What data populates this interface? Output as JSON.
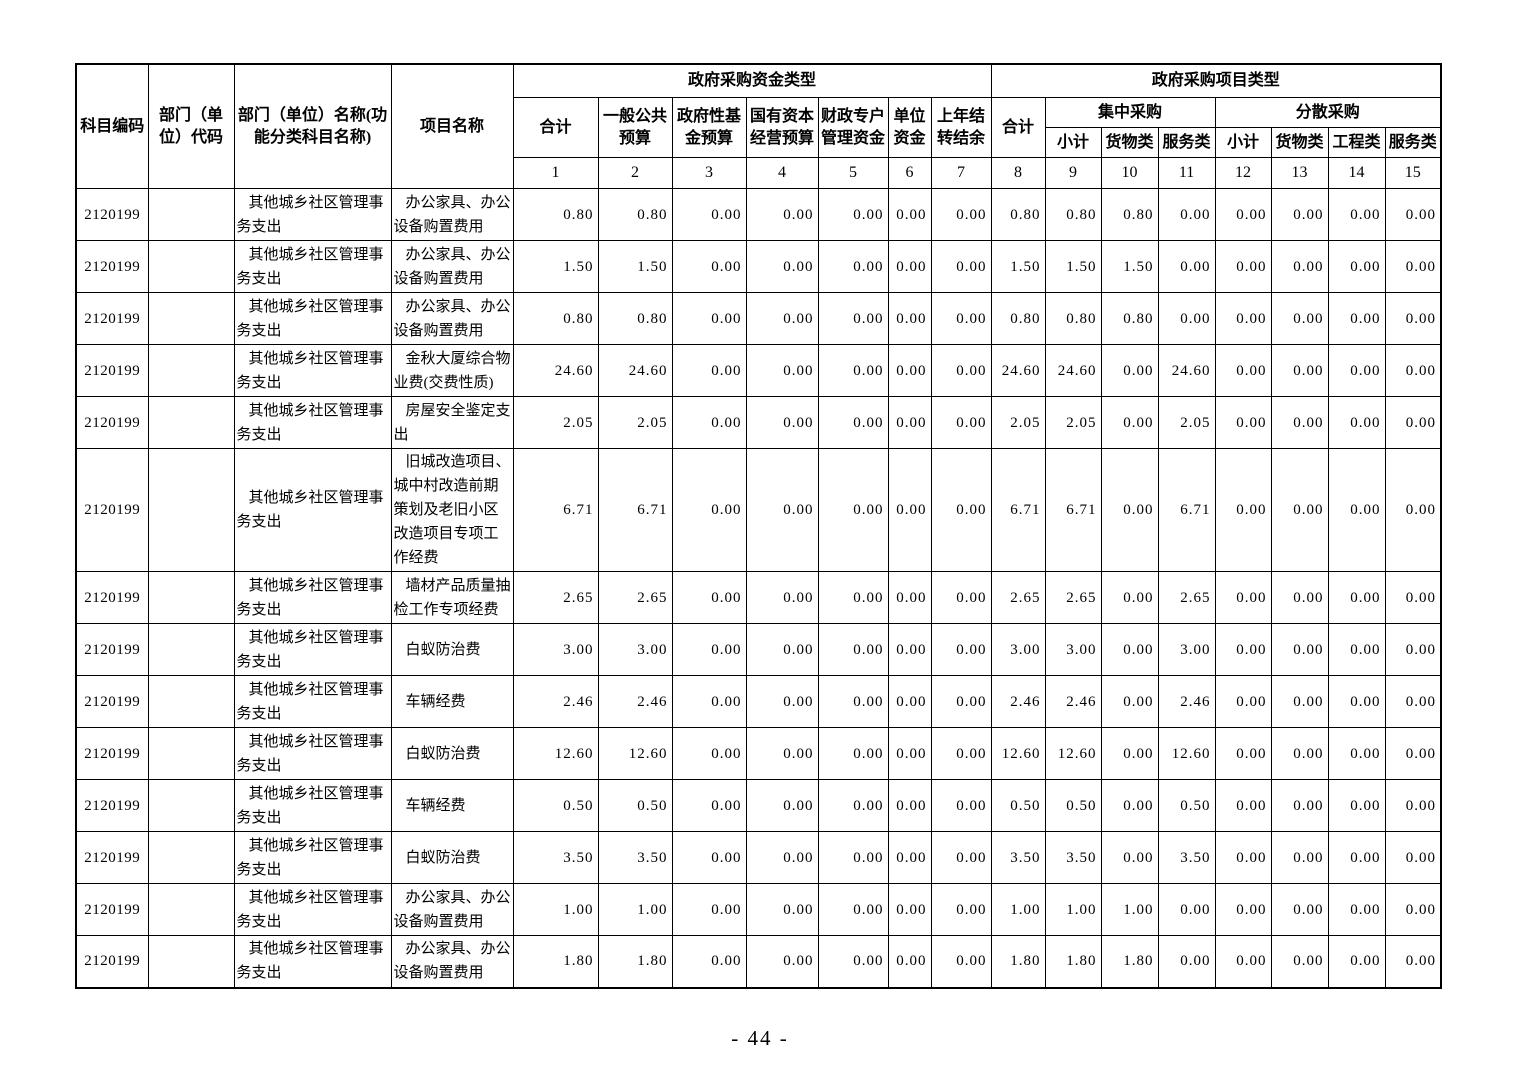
{
  "page": {
    "footer": "- 44 -"
  },
  "table": {
    "headers": {
      "subject_code": "科目编码",
      "dept_code": "部门（单位）代码",
      "dept_name": "部门（单位）名称(功能分类科目名称)",
      "project_name": "项目名称",
      "fund_type_group": "政府采购资金类型",
      "project_type_group": "政府采购项目类型",
      "fund_cols": [
        "合计",
        "一般公共预算",
        "政府性基金预算",
        "国有资本经营预算",
        "财政专户管理资金",
        "单位资金",
        "上年结转结余"
      ],
      "project_total": "合计",
      "centralized_group": "集中采购",
      "decentralized_group": "分散采购",
      "centralized_cols": [
        "小计",
        "货物类",
        "服务类"
      ],
      "decentralized_cols": [
        "小计",
        "货物类",
        "工程类",
        "服务类"
      ],
      "col_numbers": [
        "1",
        "2",
        "3",
        "4",
        "5",
        "6",
        "7",
        "8",
        "9",
        "10",
        "11",
        "12",
        "13",
        "14",
        "15"
      ]
    },
    "rows": [
      {
        "code": "2120199",
        "dept_code": "",
        "name": "其他城乡社区管理事务支出",
        "project": "办公家具、办公设备购置费用",
        "values": [
          "0.80",
          "0.80",
          "0.00",
          "0.00",
          "0.00",
          "0.00",
          "0.00",
          "0.80",
          "0.80",
          "0.80",
          "0.00",
          "0.00",
          "0.00",
          "0.00",
          "0.00"
        ]
      },
      {
        "code": "2120199",
        "dept_code": "",
        "name": "其他城乡社区管理事务支出",
        "project": "办公家具、办公设备购置费用",
        "values": [
          "1.50",
          "1.50",
          "0.00",
          "0.00",
          "0.00",
          "0.00",
          "0.00",
          "1.50",
          "1.50",
          "1.50",
          "0.00",
          "0.00",
          "0.00",
          "0.00",
          "0.00"
        ]
      },
      {
        "code": "2120199",
        "dept_code": "",
        "name": "其他城乡社区管理事务支出",
        "project": "办公家具、办公设备购置费用",
        "values": [
          "0.80",
          "0.80",
          "0.00",
          "0.00",
          "0.00",
          "0.00",
          "0.00",
          "0.80",
          "0.80",
          "0.80",
          "0.00",
          "0.00",
          "0.00",
          "0.00",
          "0.00"
        ]
      },
      {
        "code": "2120199",
        "dept_code": "",
        "name": "其他城乡社区管理事务支出",
        "project": "金秋大厦综合物业费(交费性质)",
        "values": [
          "24.60",
          "24.60",
          "0.00",
          "0.00",
          "0.00",
          "0.00",
          "0.00",
          "24.60",
          "24.60",
          "0.00",
          "24.60",
          "0.00",
          "0.00",
          "0.00",
          "0.00"
        ]
      },
      {
        "code": "2120199",
        "dept_code": "",
        "name": "其他城乡社区管理事务支出",
        "project": "房屋安全鉴定支出",
        "values": [
          "2.05",
          "2.05",
          "0.00",
          "0.00",
          "0.00",
          "0.00",
          "0.00",
          "2.05",
          "2.05",
          "0.00",
          "2.05",
          "0.00",
          "0.00",
          "0.00",
          "0.00"
        ]
      },
      {
        "code": "2120199",
        "dept_code": "",
        "name": "其他城乡社区管理事务支出",
        "project": "旧城改造项目、城中村改造前期策划及老旧小区改造项目专项工作经费",
        "values": [
          "6.71",
          "6.71",
          "0.00",
          "0.00",
          "0.00",
          "0.00",
          "0.00",
          "6.71",
          "6.71",
          "0.00",
          "6.71",
          "0.00",
          "0.00",
          "0.00",
          "0.00"
        ]
      },
      {
        "code": "2120199",
        "dept_code": "",
        "name": "其他城乡社区管理事务支出",
        "project": "墙材产品质量抽检工作专项经费",
        "values": [
          "2.65",
          "2.65",
          "0.00",
          "0.00",
          "0.00",
          "0.00",
          "0.00",
          "2.65",
          "2.65",
          "0.00",
          "2.65",
          "0.00",
          "0.00",
          "0.00",
          "0.00"
        ]
      },
      {
        "code": "2120199",
        "dept_code": "",
        "name": "其他城乡社区管理事务支出",
        "project": "白蚁防治费",
        "values": [
          "3.00",
          "3.00",
          "0.00",
          "0.00",
          "0.00",
          "0.00",
          "0.00",
          "3.00",
          "3.00",
          "0.00",
          "3.00",
          "0.00",
          "0.00",
          "0.00",
          "0.00"
        ]
      },
      {
        "code": "2120199",
        "dept_code": "",
        "name": "其他城乡社区管理事务支出",
        "project": "车辆经费",
        "values": [
          "2.46",
          "2.46",
          "0.00",
          "0.00",
          "0.00",
          "0.00",
          "0.00",
          "2.46",
          "2.46",
          "0.00",
          "2.46",
          "0.00",
          "0.00",
          "0.00",
          "0.00"
        ]
      },
      {
        "code": "2120199",
        "dept_code": "",
        "name": "其他城乡社区管理事务支出",
        "project": "白蚁防治费",
        "values": [
          "12.60",
          "12.60",
          "0.00",
          "0.00",
          "0.00",
          "0.00",
          "0.00",
          "12.60",
          "12.60",
          "0.00",
          "12.60",
          "0.00",
          "0.00",
          "0.00",
          "0.00"
        ]
      },
      {
        "code": "2120199",
        "dept_code": "",
        "name": "其他城乡社区管理事务支出",
        "project": "车辆经费",
        "values": [
          "0.50",
          "0.50",
          "0.00",
          "0.00",
          "0.00",
          "0.00",
          "0.00",
          "0.50",
          "0.50",
          "0.00",
          "0.50",
          "0.00",
          "0.00",
          "0.00",
          "0.00"
        ]
      },
      {
        "code": "2120199",
        "dept_code": "",
        "name": "其他城乡社区管理事务支出",
        "project": "白蚁防治费",
        "values": [
          "3.50",
          "3.50",
          "0.00",
          "0.00",
          "0.00",
          "0.00",
          "0.00",
          "3.50",
          "3.50",
          "0.00",
          "3.50",
          "0.00",
          "0.00",
          "0.00",
          "0.00"
        ]
      },
      {
        "code": "2120199",
        "dept_code": "",
        "name": "其他城乡社区管理事务支出",
        "project": "办公家具、办公设备购置费用",
        "values": [
          "1.00",
          "1.00",
          "0.00",
          "0.00",
          "0.00",
          "0.00",
          "0.00",
          "1.00",
          "1.00",
          "1.00",
          "0.00",
          "0.00",
          "0.00",
          "0.00",
          "0.00"
        ]
      },
      {
        "code": "2120199",
        "dept_code": "",
        "name": "其他城乡社区管理事务支出",
        "project": "办公家具、办公设备购置费用",
        "values": [
          "1.80",
          "1.80",
          "0.00",
          "0.00",
          "0.00",
          "0.00",
          "0.00",
          "1.80",
          "1.80",
          "1.80",
          "0.00",
          "0.00",
          "0.00",
          "0.00",
          "0.00"
        ]
      }
    ]
  }
}
